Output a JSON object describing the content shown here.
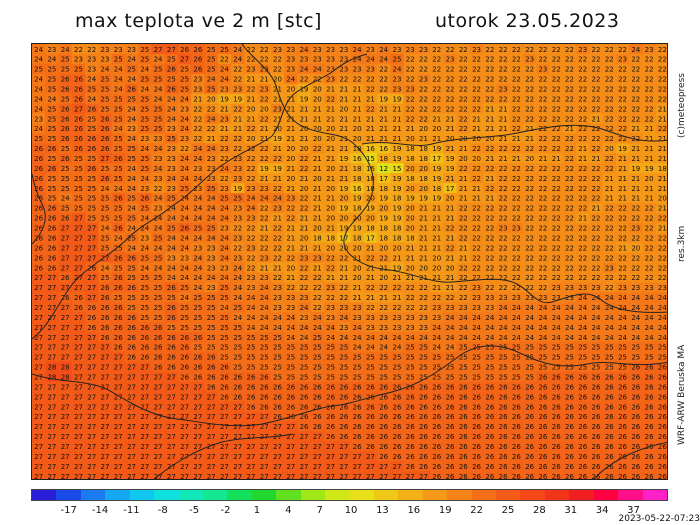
{
  "header": {
    "title_left": "max teplota ve 2 m [stc]",
    "title_right": "utorok 23.05.2023"
  },
  "side_labels": {
    "copyright": "(c)meteopress",
    "resolution": "res.3km",
    "model": "WRF-ARW Beruska MA"
  },
  "timestamp": "2023-05-22-07:23",
  "legend": {
    "ticks": [
      "-17",
      "-14",
      "-11",
      "-8",
      "-5",
      "-2",
      "1",
      "4",
      "7",
      "10",
      "13",
      "16",
      "19",
      "22",
      "25",
      "28",
      "31",
      "34",
      "37"
    ],
    "colors": [
      "#2a1ed8",
      "#1a4be8",
      "#1a7cf0",
      "#16a8f2",
      "#10c8f0",
      "#10e0e0",
      "#12e8b8",
      "#14e890",
      "#14e05a",
      "#20d830",
      "#60e020",
      "#a0e818",
      "#d0e818",
      "#e8e018",
      "#f0c818",
      "#f5b018",
      "#f59a18",
      "#f58418",
      "#f56e18",
      "#f45a18",
      "#f44818",
      "#f23418",
      "#f02020",
      "#ff0040",
      "#ff1088",
      "#ff20c8"
    ]
  },
  "map": {
    "rows": [
      "24 23 24 22 22 23 23 23 25 27 27 26 26 25 25 24 22 22 23 23 24 23 23 23 24 23 24 23 23 23 22 22 22 23 22 22 22 22 22 22 22 23 22 22 22 24 23 22",
      "24 24 25 23 23 23 25 24 25 24 25 27 26 25 22 24 22 22 22 23 23 23 23 23 24 24 24 25 22 22 22 23 22 22 22 22 22 23 22 22 22 22 22 22 23 22 22 22",
      "25 25 25 25 23 24 24 25 24 25 26 25 26 25 24 22 23 23 22 23 24 24 23 23 23 23 22 24 22 22 22 22 22 22 22 22 22 22 23 22 22 22 22 22 22 22 22 22",
      "24 25 26 26 24 25 24 24 25 25 25 25 23 24 24 22 21 21 20 24 22 22 23 22 22 22 22 23 22 23 22 22 22 22 22 22 22 22 22 22 22 22 22 22 22 22 22 22",
      "24 25 26 26 25 25 24 26 24 24 26 25 23 25 23 23 22 23 21 20 19 20 21 21 21 22 22 23 23 22 22 22 22 22 22 23 22 22 22 22 22 22 22 22 22 22 22 22",
      "24 24 25 26 24 25 25 25 25 24 24 24 21 20 19 19 21 22 21 21 19 20 22 21 21 21 19 19 22 22 22 22 22 22 22 22 22 22 22 22 22 22 22 22 22 22 22 22",
      "24 25 26 27 26 25 25 24 25 25 24 23 22 22 21 22 20 20 23 21 21 21 21 20 21 22 21 21 22 22 22 22 22 22 21 21 22 22 22 22 22 22 22 22 22 22 22 21",
      "23 25 26 26 25 26 25 24 25 25 24 24 22 24 23 21 21 22 21 21 21 21 21 21 21 21 21 21 22 22 21 21 22 21 21 21 22 22 22 22 22 22 21 22 22 22 22 21",
      "24 25 26 26 25 26 24 23 25 25 23 24 22 22 21 21 22 21 20 21 20 20 20 21 20 21 21 21 21 20 20 21 22 21 21 21 22 21 22 22 21 22 22 22 22 21 21 22",
      "25 25 26 26 26 26 25 24 23 23 25 23 22 21 22 22 20 21 19 21 21 20 20 21 20 21 21 21 20 21 21 20 20 20 20 21 21 21 22 22 22 22 22 22 22 22 21 21",
      "26 26 25 26 26 26 25 25 24 24 23 22 24 24 23 22 22 22 21 20 20 22 21 21 18 16 16 19 18 18 19 21 21 22 22 22 22 22 22 22 22 21 22 20 19 21 21 21",
      "26 25 26 25 25 27 26 25 25 23 23 24 24 23 22 23 22 22 22 20 22 21 21 19 16 15 18 19 18 18 17 19 20 20 21 21 21 20 21 21 22 21 21 22 21 21 21 21",
      "26 26 25 25 26 25 25 24 25 24 23 24 23 23 24 23 22 19 19 21 22 21 20 21 18 16 12 15 20 20 19 19 22 22 22 22 22 22 22 22 22 22 22 22 21 19 19 18",
      "26 25 25 25 25 26 25 24 24 23 24 24 24 23 22 23 22 21 21 20 21 20 21 21 18 18 17 19 18 18 19 21 21 22 21 22 22 22 22 22 22 22 22 21 21 21 20 21",
      "26 25 25 25 25 24 24 24 23 22 23 25 23 25 23 19 23 23 22 21 20 21 20 19 16 18 18 19 20 20 18 17 21 21 22 22 22 22 22 22 22 22 22 21 21 21 21 21",
      "26 25 24 25 25 25 26 25 26 24 25 24 24 24 25 25 24 24 24 23 22 21 21 20 19 20 19 18 19 19 19 20 21 21 21 22 22 22 22 22 22 22 22 21 21 21 21 20",
      "26 26 25 25 25 25 25 24 25 23 24 24 24 24 24 23 24 22 23 22 22 21 20 19 18 19 20 19 20 21 21 21 22 22 22 22 22 22 22 22 22 22 21 22 22 22 22 21",
      "26 26 26 27 25 25 25 25 24 24 24 24 24 24 24 23 23 22 21 22 21 21 20 20 20 20 19 19 20 21 21 21 22 22 22 22 22 22 22 22 22 21 22 22 22 22 22 22",
      "26 26 27 27 27 24 26 24 24 24 25 26 25 25 23 22 22 21 22 21 21 20 21 19 19 18 18 18 20 21 21 22 22 22 22 23 23 22 22 22 22 22 22 22 22 23 22 21",
      "26 26 27 27 27 25 24 25 23 25 24 24 24 24 24 23 22 22 22 21 20 18 18 17 18 17 18 18 18 21 21 21 22 22 22 22 22 22 22 22 22 22 22 22 22 22 22 22",
      "26 26 27 27 27 25 25 24 24 24 24 24 23 23 24 22 23 22 22 21 21 21 20 20 20 21 20 20 21 21 21 22 21 22 22 22 22 22 22 22 22 22 22 22 21 20 22 22",
      "26 26 27 27 27 27 26 26 25 25 23 23 24 23 24 23 22 23 22 22 23 23 22 22 21 22 22 21 21 21 20 21 21 22 22 22 22 22 22 22 22 22 22 22 22 22 22 22",
      "26 26 27 27 26 24 25 25 24 24 24 24 24 23 23 24 22 21 21 20 22 21 22 21 20 21 21 19 20 20 20 20 22 22 22 22 22 22 22 22 22 22 22 23 22 22 22 22",
      "27 27 26 27 27 25 26 25 25 25 24 24 24 24 24 24 23 23 22 21 22 22 21 21 20 21 20 21 21 21 21 21 22 22 22 22 22 22 22 22 22 22 22 22 22 22 22 22",
      "27 27 27 27 27 26 26 26 25 25 26 25 24 23 25 24 23 24 23 22 22 22 23 22 21 22 22 22 22 22 21 21 22 23 22 22 22 22 22 23 23 23 23 22 23 23 23 23",
      "27 27 26 26 27 26 25 25 25 25 25 24 25 25 25 24 24 24 23 23 23 22 22 22 21 21 21 21 22 22 22 22 22 23 23 23 23 23 23 23 23 24 24 24 24 24 24 24",
      "27 27 27 26 26 26 26 25 25 25 26 25 25 25 24 25 24 24 23 23 24 22 23 23 23 22 22 22 22 22 23 23 23 23 23 24 24 24 24 24 24 24 24 24 24 24 24 24",
      "27 27 27 27 26 26 26 26 25 25 26 25 25 25 25 24 24 24 24 24 23 24 23 24 23 23 23 23 23 23 23 24 24 24 24 24 24 24 24 24 24 24 24 24 24 24 24 24",
      "27 27 27 27 26 26 26 26 26 26 25 25 25 25 25 25 24 24 24 24 24 24 24 23 24 23 23 23 23 23 24 24 24 24 24 24 24 24 24 24 24 24 24 24 24 24 24 24",
      "27 27 27 27 27 26 26 26 26 26 26 26 26 25 25 25 25 25 25 24 24 25 24 24 24 24 24 24 24 24 24 24 24 24 24 24 24 24 24 24 24 24 24 24 24 24 24 24",
      "27 27 27 27 27 27 26 26 26 26 26 26 25 25 25 25 25 25 25 25 25 25 25 25 24 24 24 24 25 25 24 24 25 25 25 25 25 25 25 25 25 25 25 25 25 25 25 25",
      "27 27 27 27 27 27 27 26 26 26 26 26 26 26 25 25 25 25 25 25 25 25 25 25 25 25 25 25 25 25 25 25 25 25 25 25 25 25 25 25 25 25 25 25 25 25 25 25",
      "27 28 28 27 27 27 27 27 27 26 26 26 26 26 26 25 25 25 25 25 25 25 25 25 25 25 25 25 25 25 25 25 25 25 25 25 25 25 25 25 25 25 25 25 25 26 26 26",
      "27 28 28 27 27 27 27 27 27 27 27 26 26 26 26 26 26 26 25 25 25 25 25 25 25 25 25 25 25 25 25 25 25 25 25 25 25 25 26 26 26 26 26 26 26 26 26 26",
      "27 27 27 27 27 27 27 27 27 27 27 27 27 26 26 26 26 26 26 26 26 26 26 26 26 26 26 26 26 26 26 26 26 26 26 26 26 26 26 26 26 26 26 26 26 26 26 26",
      "27 27 27 27 27 27 27 27 27 27 27 27 27 27 26 26 26 26 26 26 26 26 26 26 26 26 26 26 26 26 26 26 26 26 26 26 26 26 26 26 26 26 26 26 26 26 26 26",
      "27 27 27 27 27 27 27 27 27 27 27 27 27 27 27 27 26 26 26 26 26 26 26 26 26 26 26 26 26 26 26 26 26 26 26 26 26 26 26 26 26 26 26 26 26 26 26 26",
      "27 27 27 27 27 27 27 27 27 27 27 27 27 27 27 27 27 27 26 26 26 26 26 26 26 26 26 26 26 26 26 26 26 26 26 26 26 26 26 26 26 26 26 26 26 26 26 26",
      "27 27 27 27 27 27 27 27 27 27 27 27 27 27 27 27 27 27 27 27 26 26 26 26 26 26 26 26 26 26 26 26 26 26 26 26 26 26 26 26 26 26 26 26 26 26 26 26",
      "27 27 27 27 27 27 27 27 27 27 27 27 27 27 27 27 27 27 27 27 27 27 26 26 26 26 26 26 26 26 26 26 26 26 26 26 26 26 26 26 26 26 26 26 26 26 26 26",
      "27 27 27 27 27 27 27 27 27 27 27 27 27 27 27 27 27 27 27 27 27 27 27 27 26 26 26 26 26 26 26 26 26 26 26 26 26 26 26 26 26 26 26 26 26 26 26 26",
      "27 27 27 27 27 27 27 27 27 27 27 27 27 27 27 27 27 27 27 27 27 27 27 27 27 27 26 26 26 26 26 26 26 26 26 26 26 26 26 26 26 26 26 26 26 26 26 26",
      "27 27 27 27 27 27 27 27 27 27 27 27 27 27 27 27 27 27 27 27 27 27 27 27 27 27 27 27 26 26 26 26 26 26 26 26 26 26 26 26 26 26 26 26 26 26 26 26",
      "27 27 27 27 27 27 27 27 27 27 27 27 27 27 27 27 27 27 27 27 27 27 27 27 27 27 27 27 27 27 26 26 26 26 26 26 26 26 26 26 26 26 26 26 26 26 26 26"
    ]
  }
}
